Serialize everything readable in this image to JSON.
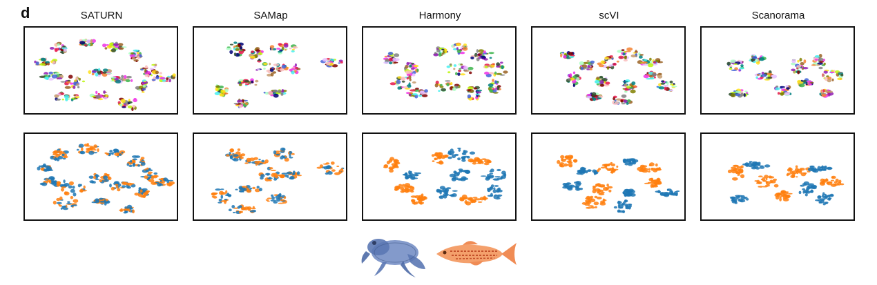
{
  "figure": {
    "panel_label": "d",
    "methods": [
      "SATURN",
      "SAMap",
      "Harmony",
      "scVI",
      "Scanorama"
    ]
  },
  "rows": [
    {
      "id": "row-top",
      "description_colored_by": "cell type",
      "palette": [
        "#e6194b",
        "#3cb44b",
        "#ffe119",
        "#4363d8",
        "#f58231",
        "#911eb4",
        "#46f0f0",
        "#f032e6",
        "#bcf60c",
        "#fabebe",
        "#008080",
        "#e6beff",
        "#9a6324",
        "#800000",
        "#aaffc3",
        "#808000",
        "#000075",
        "#808080",
        "#2f4f2f",
        "#c49a6c"
      ]
    },
    {
      "id": "row-bottom",
      "description_colored_by": "species",
      "palette": [
        "#1f77b4",
        "#ff7f0e"
      ]
    }
  ],
  "species_icons": [
    {
      "icon": "frog-icon",
      "color": "#5b78b4"
    },
    {
      "icon": "zebrafish-icon",
      "color": "#f08c55"
    }
  ]
}
